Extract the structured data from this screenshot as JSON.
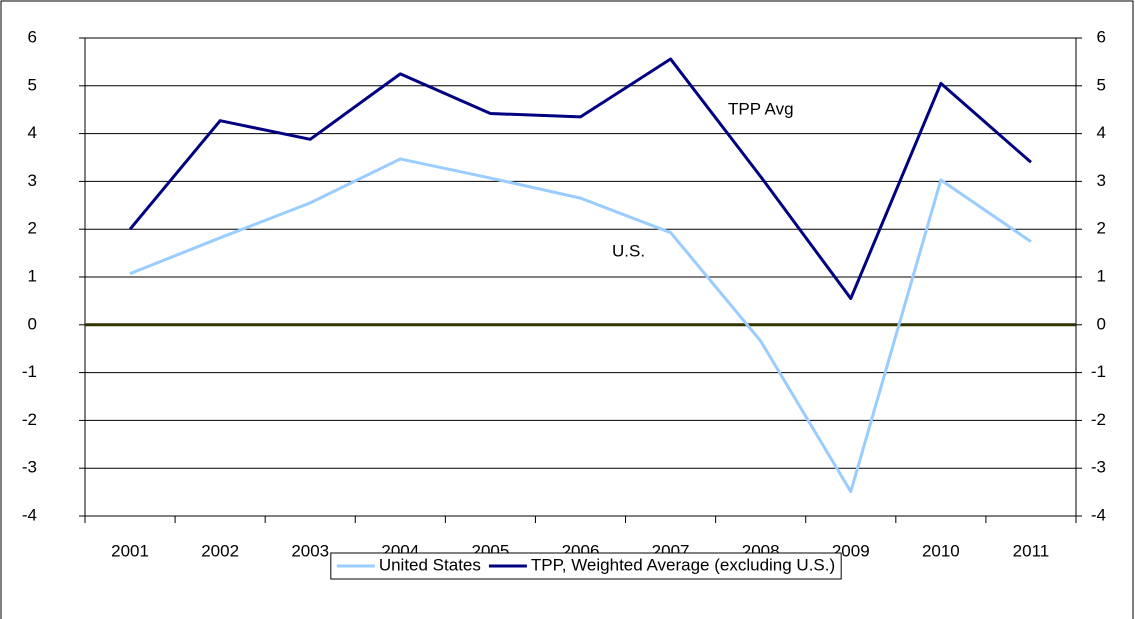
{
  "chart_data": {
    "type": "line",
    "categories": [
      "2001",
      "2002",
      "2003",
      "2004",
      "2005",
      "2006",
      "2007",
      "2008",
      "2009",
      "2010",
      "2011"
    ],
    "series": [
      {
        "name": "United States",
        "color": "#99ccff",
        "values": [
          1.07,
          1.82,
          2.55,
          3.47,
          3.07,
          2.65,
          1.93,
          -0.34,
          -3.49,
          3.03,
          1.74
        ]
      },
      {
        "name": "TPP, Weighted Average (excluding U.S.)",
        "color": "#000080",
        "values": [
          2.0,
          4.27,
          3.88,
          5.25,
          4.42,
          4.35,
          5.56,
          3.1,
          0.55,
          5.05,
          3.4
        ]
      }
    ],
    "ylim": [
      -4,
      6
    ],
    "yticks": [
      -4,
      -3,
      -2,
      -1,
      0,
      1,
      2,
      3,
      4,
      5,
      6
    ],
    "y2lim": [
      -4,
      6
    ],
    "y2ticks": [
      -4,
      -3,
      -2,
      -1,
      0,
      1,
      2,
      3,
      4,
      5,
      6
    ],
    "grid": true,
    "legend": "bottom",
    "annotations": [
      {
        "text": "TPP Avg"
      },
      {
        "text": "U.S."
      }
    ]
  }
}
